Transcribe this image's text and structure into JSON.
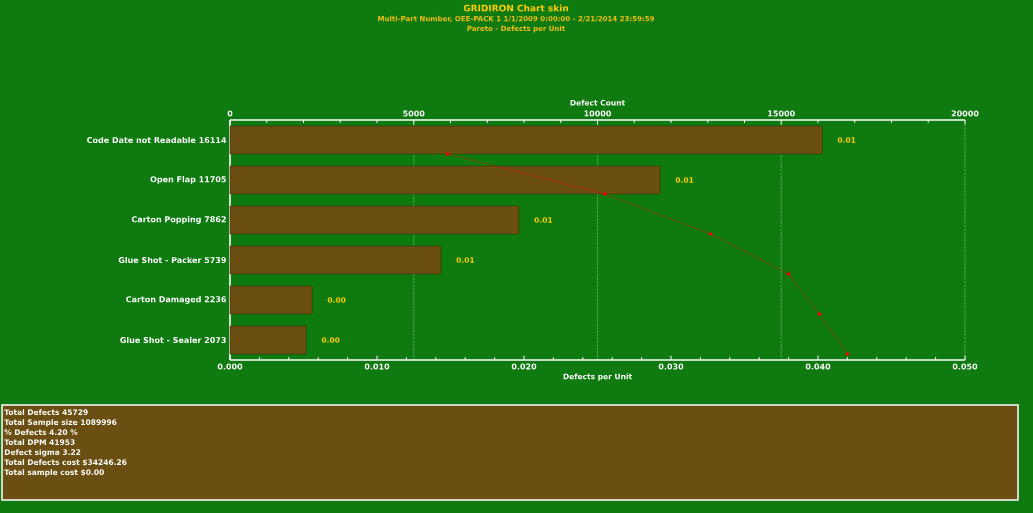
{
  "chart_data": {
    "type": "bar",
    "orientation": "horizontal",
    "title": "GRIDIRON Chart skin",
    "subtitle": "Multi-Part Number, OEE-PACK 1   1/1/2009 0:00:00 - 2/21/2014 23:59:59",
    "xlabel": "Defects per Unit",
    "x2label": "Defect Count",
    "categories": [
      "Code Date not Readable  16114",
      "Open Flap  11705",
      "Carton Popping  7862",
      "Glue Shot - Packer  5739",
      "Carton Damaged  2236",
      "Glue Shot - Sealer  2073"
    ],
    "series": [
      {
        "axis": "x2",
        "color": "#6b4f12",
        "values": [
          16114,
          11705,
          7862,
          5739,
          2236,
          2073
        ]
      },
      {
        "type": "line",
        "color": "#ff0000",
        "marker": "circle",
        "values": [
          0.0148,
          0.0255,
          0.0327,
          0.038,
          0.0401,
          0.042
        ]
      }
    ],
    "xlim": [
      0,
      0.05
    ],
    "xticks": [
      {
        "value": 0,
        "label": "0.000"
      },
      {
        "value": 0.01,
        "label": "0.010"
      },
      {
        "value": 0.02,
        "label": "0.020"
      },
      {
        "value": 0.03,
        "label": "0.030"
      },
      {
        "value": 0.04,
        "label": "0.040"
      },
      {
        "value": 0.05,
        "label": "0.050"
      }
    ],
    "x2lim": [
      0,
      20000
    ],
    "x2ticks": [
      0,
      5000,
      10000,
      15000,
      20000
    ],
    "grid": "x2",
    "annotations": [
      "Pareto - Defects per Unit",
      "Total Defects    45729",
      "Total Sample size    1089996",
      "% Defects    4.20 %",
      "Total DPM    41953",
      "Defect sigma    3.22",
      "Total Defects cost    $34246.26",
      "Total sample cost    $0.00",
      "0.01",
      "0.01",
      "0.01",
      "0.01",
      "0.00",
      "0.00"
    ]
  }
}
